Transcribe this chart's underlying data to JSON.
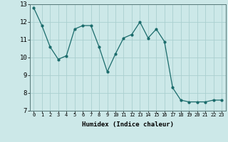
{
  "xlabel": "Humidex (Indice chaleur)",
  "x": [
    0,
    1,
    2,
    3,
    4,
    5,
    6,
    7,
    8,
    9,
    10,
    11,
    12,
    13,
    14,
    15,
    16,
    17,
    18,
    19,
    20,
    21,
    22,
    23
  ],
  "y": [
    12.8,
    11.8,
    10.6,
    9.9,
    10.1,
    11.6,
    11.8,
    11.8,
    10.6,
    9.2,
    10.2,
    11.1,
    11.3,
    12.0,
    11.1,
    11.6,
    10.9,
    8.3,
    7.6,
    7.5,
    7.5,
    7.5,
    7.6,
    7.6
  ],
  "line_color": "#1a6b6b",
  "bg_color": "#cce8e8",
  "grid_color": "#aacfcf",
  "ylim": [
    7,
    13
  ],
  "xlim": [
    -0.5,
    23.5
  ],
  "yticks": [
    7,
    8,
    9,
    10,
    11,
    12,
    13
  ],
  "xticks": [
    0,
    1,
    2,
    3,
    4,
    5,
    6,
    7,
    8,
    9,
    10,
    11,
    12,
    13,
    14,
    15,
    16,
    17,
    18,
    19,
    20,
    21,
    22,
    23
  ]
}
